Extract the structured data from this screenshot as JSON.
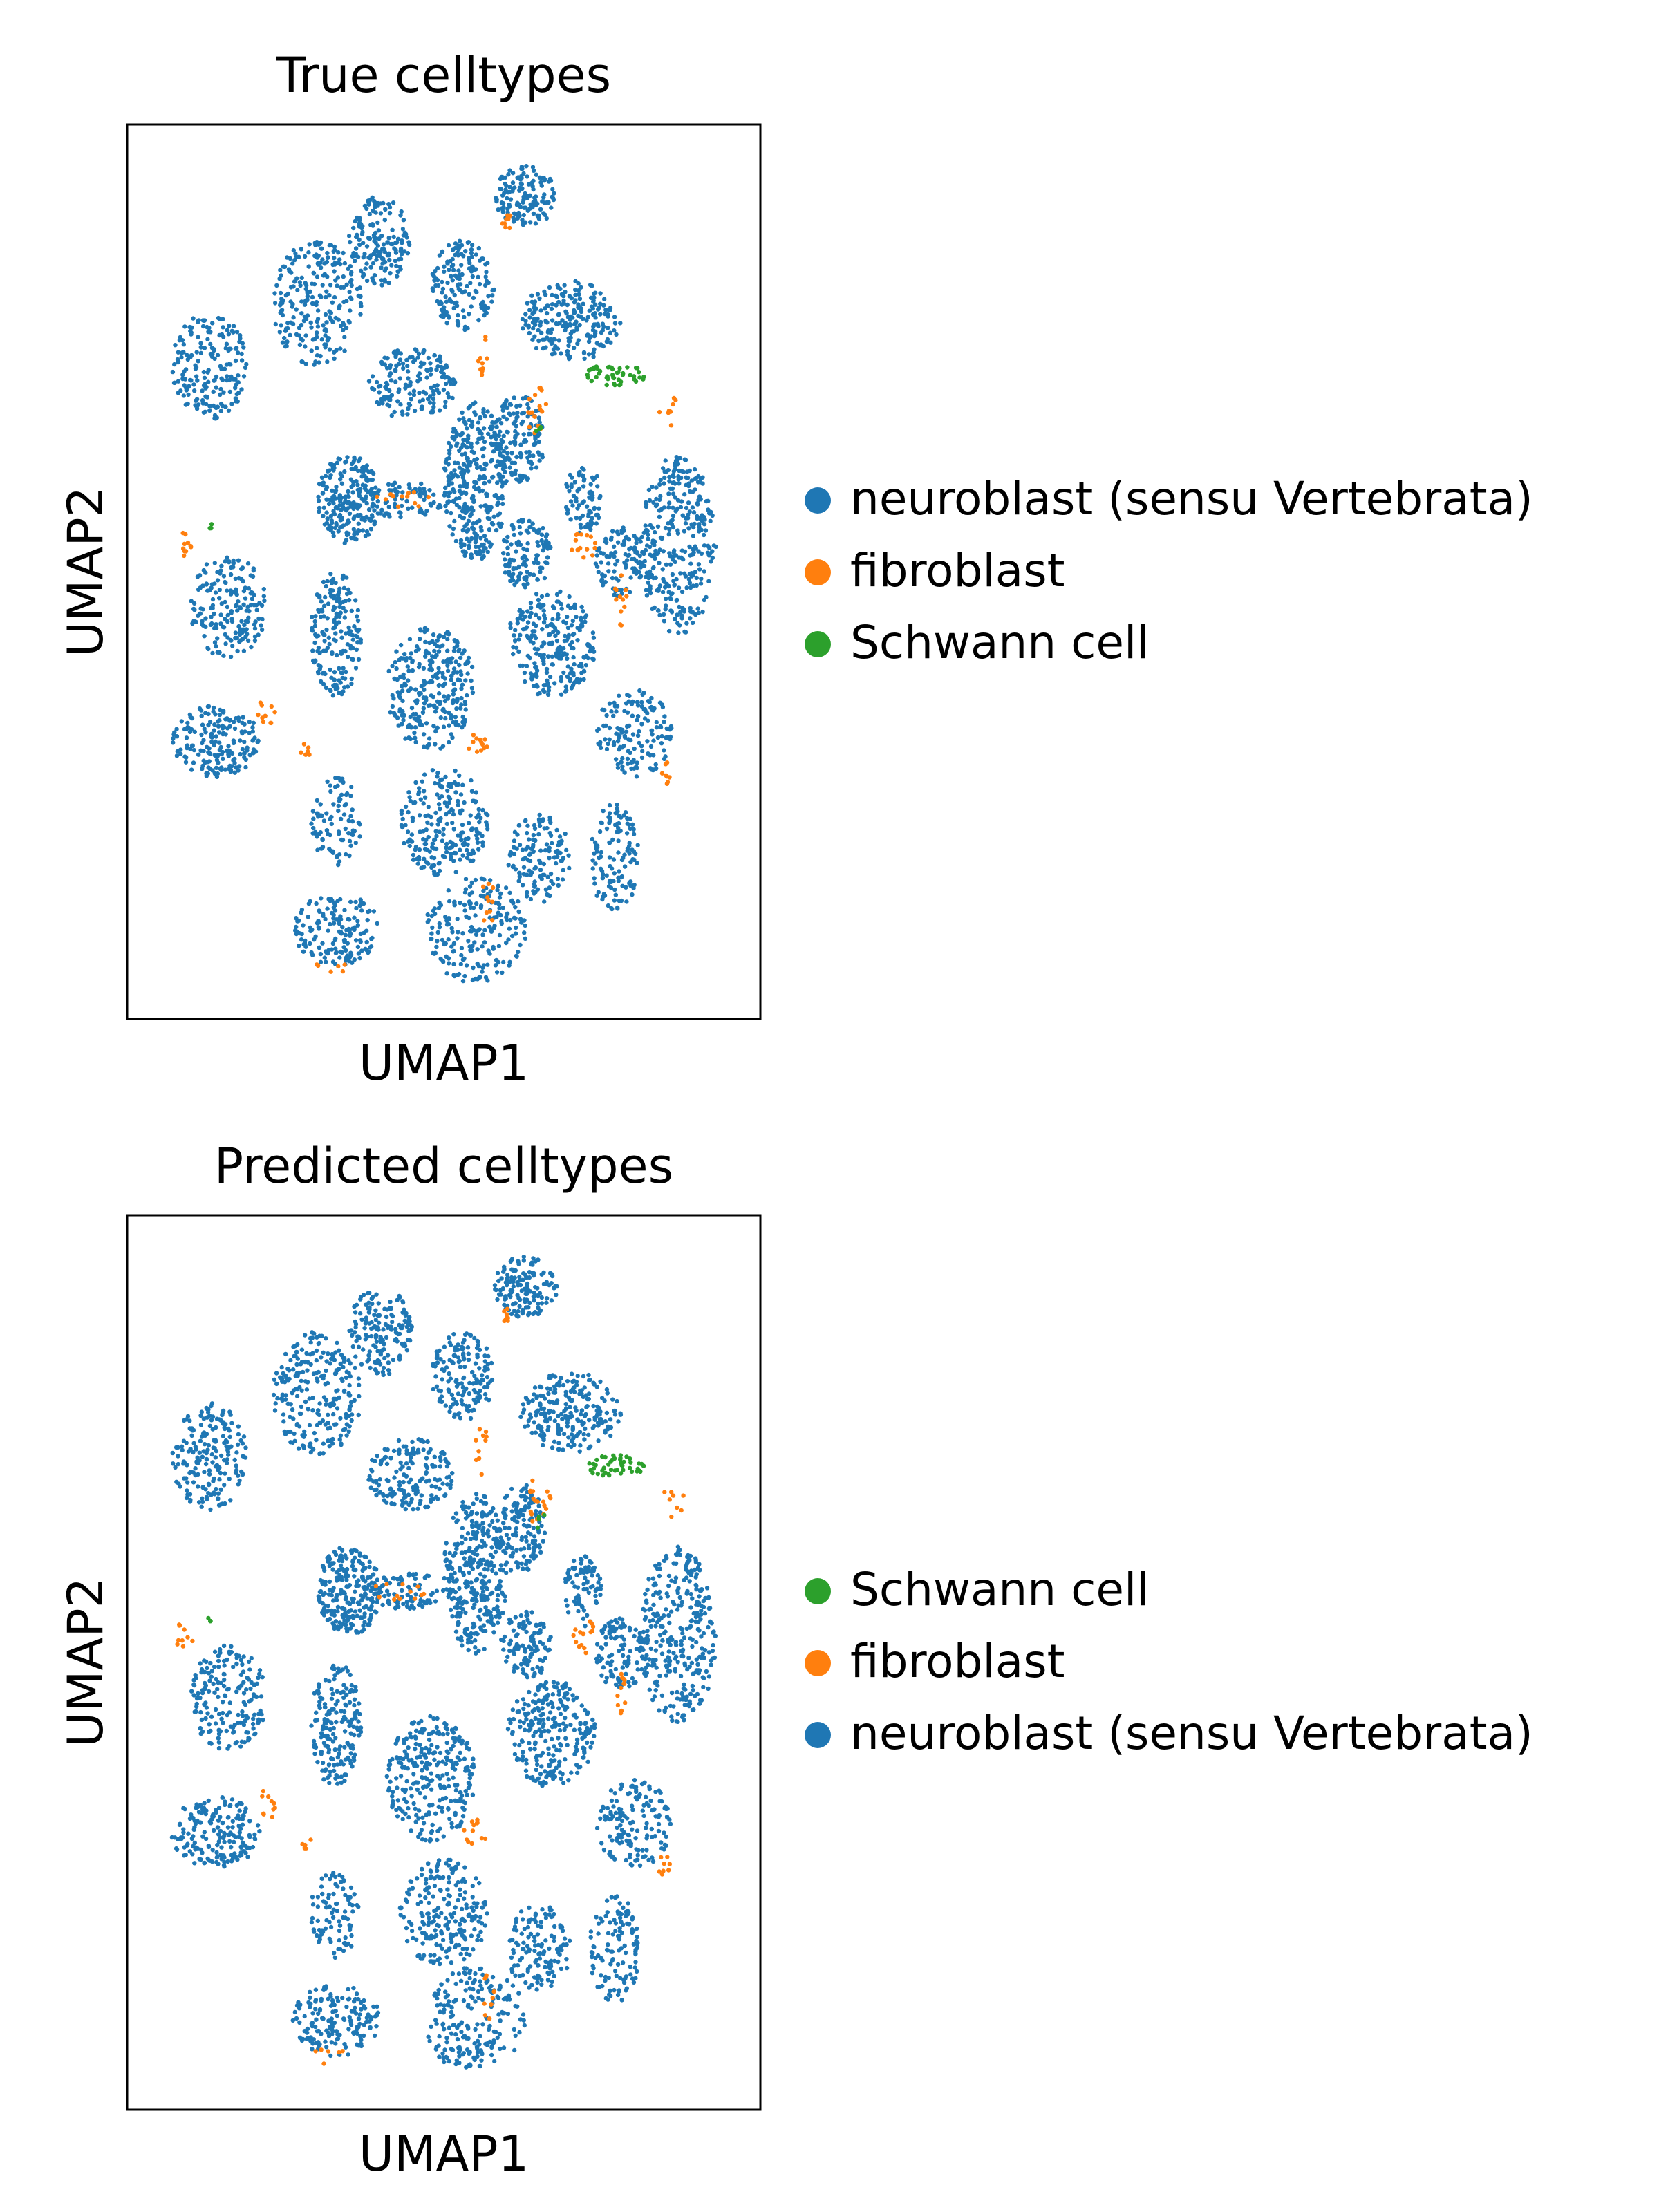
{
  "chart_data": [
    {
      "type": "scatter",
      "title": "True celltypes",
      "xlabel": "UMAP1",
      "ylabel": "UMAP2",
      "grid": false,
      "axis_ticks": false,
      "legend_placement": "right",
      "legend": [
        {
          "label": "neuroblast (sensu Vertebrata)",
          "color": "#1f77b4"
        },
        {
          "label": "fibroblast",
          "color": "#ff7f0e"
        },
        {
          "label": "Schwann cell",
          "color": "#2ca02c"
        }
      ],
      "series": [
        {
          "name": "neuroblast (sensu Vertebrata)",
          "color": "#1f77b4",
          "clusters": [
            {
              "x": 0.63,
              "y": 0.92,
              "rx": 0.05,
              "ry": 0.035,
              "n": 140
            },
            {
              "x": 0.4,
              "y": 0.87,
              "rx": 0.05,
              "ry": 0.05,
              "n": 160
            },
            {
              "x": 0.53,
              "y": 0.82,
              "rx": 0.05,
              "ry": 0.05,
              "n": 150
            },
            {
              "x": 0.7,
              "y": 0.78,
              "rx": 0.08,
              "ry": 0.045,
              "n": 230
            },
            {
              "x": 0.3,
              "y": 0.8,
              "rx": 0.07,
              "ry": 0.07,
              "n": 240
            },
            {
              "x": 0.13,
              "y": 0.73,
              "rx": 0.06,
              "ry": 0.06,
              "n": 190
            },
            {
              "x": 0.45,
              "y": 0.71,
              "rx": 0.07,
              "ry": 0.04,
              "n": 170
            },
            {
              "x": 0.35,
              "y": 0.58,
              "rx": 0.05,
              "ry": 0.05,
              "n": 230
            },
            {
              "x": 0.55,
              "y": 0.6,
              "rx": 0.05,
              "ry": 0.09,
              "n": 330
            },
            {
              "x": 0.44,
              "y": 0.58,
              "rx": 0.07,
              "ry": 0.02,
              "n": 80
            },
            {
              "x": 0.62,
              "y": 0.65,
              "rx": 0.04,
              "ry": 0.05,
              "n": 140
            },
            {
              "x": 0.72,
              "y": 0.58,
              "rx": 0.03,
              "ry": 0.04,
              "n": 80
            },
            {
              "x": 0.87,
              "y": 0.53,
              "rx": 0.06,
              "ry": 0.1,
              "n": 320
            },
            {
              "x": 0.78,
              "y": 0.51,
              "rx": 0.04,
              "ry": 0.04,
              "n": 100
            },
            {
              "x": 0.63,
              "y": 0.52,
              "rx": 0.04,
              "ry": 0.04,
              "n": 110
            },
            {
              "x": 0.67,
              "y": 0.42,
              "rx": 0.07,
              "ry": 0.06,
              "n": 250
            },
            {
              "x": 0.16,
              "y": 0.46,
              "rx": 0.06,
              "ry": 0.06,
              "n": 180
            },
            {
              "x": 0.33,
              "y": 0.43,
              "rx": 0.04,
              "ry": 0.07,
              "n": 180
            },
            {
              "x": 0.48,
              "y": 0.37,
              "rx": 0.07,
              "ry": 0.07,
              "n": 280
            },
            {
              "x": 0.14,
              "y": 0.31,
              "rx": 0.07,
              "ry": 0.04,
              "n": 180
            },
            {
              "x": 0.8,
              "y": 0.32,
              "rx": 0.06,
              "ry": 0.05,
              "n": 150
            },
            {
              "x": 0.33,
              "y": 0.22,
              "rx": 0.04,
              "ry": 0.05,
              "n": 90
            },
            {
              "x": 0.5,
              "y": 0.22,
              "rx": 0.07,
              "ry": 0.06,
              "n": 220
            },
            {
              "x": 0.65,
              "y": 0.18,
              "rx": 0.05,
              "ry": 0.05,
              "n": 130
            },
            {
              "x": 0.77,
              "y": 0.18,
              "rx": 0.04,
              "ry": 0.06,
              "n": 120
            },
            {
              "x": 0.55,
              "y": 0.1,
              "rx": 0.08,
              "ry": 0.06,
              "n": 200
            },
            {
              "x": 0.33,
              "y": 0.1,
              "rx": 0.07,
              "ry": 0.04,
              "n": 160
            }
          ]
        },
        {
          "name": "fibroblast",
          "color": "#ff7f0e",
          "clusters": [
            {
              "x": 0.6,
              "y": 0.89,
              "rx": 0.01,
              "ry": 0.01,
              "n": 8
            },
            {
              "x": 0.56,
              "y": 0.74,
              "rx": 0.01,
              "ry": 0.03,
              "n": 10
            },
            {
              "x": 0.65,
              "y": 0.68,
              "rx": 0.02,
              "ry": 0.03,
              "n": 18
            },
            {
              "x": 0.86,
              "y": 0.68,
              "rx": 0.02,
              "ry": 0.02,
              "n": 8
            },
            {
              "x": 0.72,
              "y": 0.53,
              "rx": 0.02,
              "ry": 0.02,
              "n": 15
            },
            {
              "x": 0.78,
              "y": 0.47,
              "rx": 0.01,
              "ry": 0.03,
              "n": 12
            },
            {
              "x": 0.09,
              "y": 0.53,
              "rx": 0.015,
              "ry": 0.015,
              "n": 10
            },
            {
              "x": 0.22,
              "y": 0.34,
              "rx": 0.02,
              "ry": 0.02,
              "n": 10
            },
            {
              "x": 0.28,
              "y": 0.3,
              "rx": 0.01,
              "ry": 0.01,
              "n": 6
            },
            {
              "x": 0.55,
              "y": 0.31,
              "rx": 0.02,
              "ry": 0.015,
              "n": 12
            },
            {
              "x": 0.85,
              "y": 0.27,
              "rx": 0.01,
              "ry": 0.02,
              "n": 8
            },
            {
              "x": 0.57,
              "y": 0.13,
              "rx": 0.01,
              "ry": 0.03,
              "n": 10
            },
            {
              "x": 0.43,
              "y": 0.58,
              "rx": 0.05,
              "ry": 0.01,
              "n": 12
            },
            {
              "x": 0.32,
              "y": 0.06,
              "rx": 0.03,
              "ry": 0.01,
              "n": 6
            }
          ]
        },
        {
          "name": "Schwann cell",
          "color": "#2ca02c",
          "clusters": [
            {
              "x": 0.77,
              "y": 0.72,
              "rx": 0.05,
              "ry": 0.012,
              "n": 45
            },
            {
              "x": 0.13,
              "y": 0.55,
              "rx": 0.005,
              "ry": 0.005,
              "n": 3
            },
            {
              "x": 0.65,
              "y": 0.66,
              "rx": 0.01,
              "ry": 0.01,
              "n": 4
            }
          ]
        }
      ]
    },
    {
      "type": "scatter",
      "title": "Predicted celltypes",
      "xlabel": "UMAP1",
      "ylabel": "UMAP2",
      "grid": false,
      "axis_ticks": false,
      "legend_placement": "right",
      "legend": [
        {
          "label": "Schwann cell",
          "color": "#2ca02c"
        },
        {
          "label": "fibroblast",
          "color": "#ff7f0e"
        },
        {
          "label": "neuroblast (sensu Vertebrata)",
          "color": "#1f77b4"
        }
      ],
      "series": "same_as_first_panel"
    }
  ]
}
